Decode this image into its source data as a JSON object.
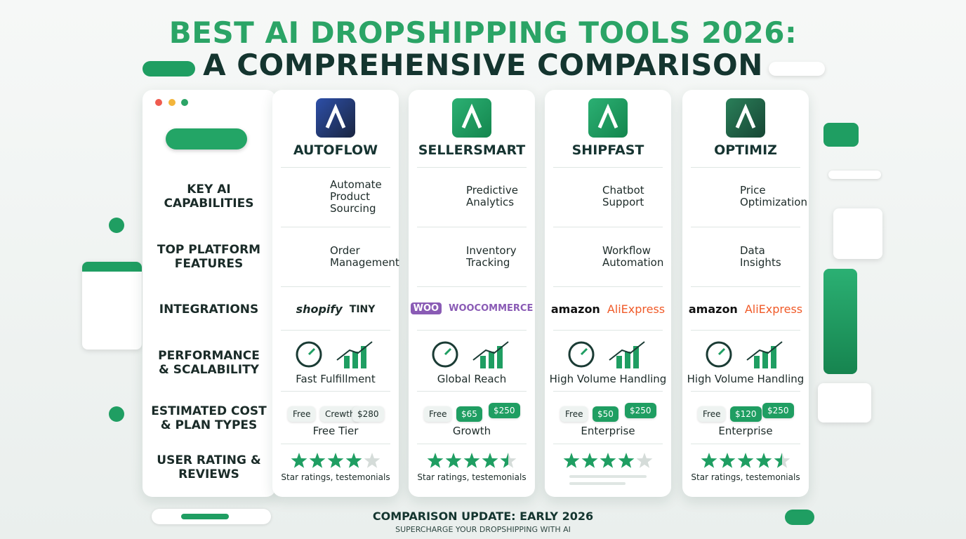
{
  "title": {
    "line1": "BEST AI DROPSHIPPING TOOLS 2026:",
    "line2": "A COMPREHENSIVE COMPARISON"
  },
  "row_labels": [
    "KEY AI CAPABILITIES",
    "TOP PLATFORM FEATURES",
    "INTEGRATIONS",
    "PERFORMANCE & SCALABILITY",
    "ESTIMATED COST & PLAN TYPES",
    "USER RATING & REVIEWS"
  ],
  "tools": [
    {
      "name": "AUTOFLOW",
      "capability": "Automate Product Sourcing",
      "feature": "Order Management",
      "integrations": [
        "shopify",
        "TINY"
      ],
      "performance": "Fast Fulfillment",
      "cost_tiers": [
        "Free",
        "Crewth",
        "$280"
      ],
      "plan": "Free Tier",
      "rating": 4,
      "reviews": "Star ratings, testemonials"
    },
    {
      "name": "SELLERSMART",
      "capability": "Predictive Analytics",
      "feature": "Inventory Tracking",
      "integrations": [
        "WOO",
        "WOOCOMMERCE"
      ],
      "performance": "Global Reach",
      "cost_tiers": [
        "Free",
        "$65",
        "$250"
      ],
      "plan": "Growth",
      "rating": 4.5,
      "reviews": "Star ratings, testemonials"
    },
    {
      "name": "SHIPFAST",
      "capability": "Chatbot Support",
      "feature": "Workflow Automation",
      "integrations": [
        "amazon",
        "AliExpress"
      ],
      "performance": "High Volume Handling",
      "cost_tiers": [
        "Free",
        "$50",
        "$250"
      ],
      "plan": "Enterprise",
      "rating": 4
    },
    {
      "name": "OPTIMIZ",
      "capability": "Price Optimization",
      "feature": "Data Insights",
      "integrations": [
        "amazon",
        "AliExpress"
      ],
      "performance": "High Volume Handling",
      "cost_tiers": [
        "Free",
        "$120",
        "$250"
      ],
      "plan": "Enterprise",
      "rating": 4.5,
      "reviews": "Star ratings, testemonials"
    }
  ],
  "footer": {
    "update": "COMPARISON UPDATE: EARLY 2026",
    "tagline": "SUPERCHARGE YOUR DROPSHIPPING WITH AI"
  }
}
